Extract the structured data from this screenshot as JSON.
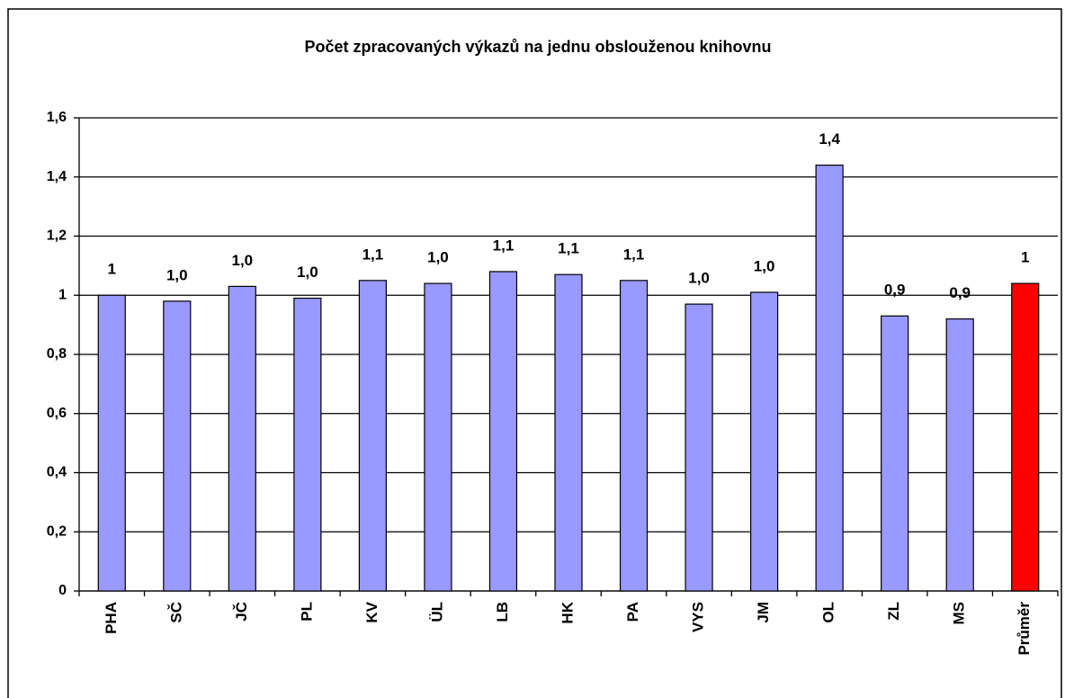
{
  "chart_data": {
    "type": "bar",
    "title": "Počet zpracovaných výkazů na jednu obslouženou knihovnu",
    "categories": [
      "PHA",
      "SČ",
      "JČ",
      "PL",
      "KV",
      "ÜL",
      "LB",
      "HK",
      "PA",
      "VYS",
      "JM",
      "OL",
      "ZL",
      "MS",
      "Průměr"
    ],
    "values": [
      1.0,
      0.98,
      1.03,
      0.99,
      1.05,
      1.04,
      1.08,
      1.07,
      1.05,
      0.97,
      1.01,
      1.44,
      0.93,
      0.92,
      1.04
    ],
    "value_labels": [
      "1",
      "1,0",
      "1,0",
      "1,0",
      "1,1",
      "1,0",
      "1,1",
      "1,1",
      "1,1",
      "1,0",
      "1,0",
      "1,4",
      "0,9",
      "0,9",
      "1"
    ],
    "colors": [
      "#9999ff",
      "#9999ff",
      "#9999ff",
      "#9999ff",
      "#9999ff",
      "#9999ff",
      "#9999ff",
      "#9999ff",
      "#9999ff",
      "#9999ff",
      "#9999ff",
      "#9999ff",
      "#9999ff",
      "#9999ff",
      "#ff0000"
    ],
    "value_label_colors": [
      "#000000",
      "#000000",
      "#000000",
      "#000000",
      "#000000",
      "#000000",
      "#000000",
      "#000000",
      "#000000",
      "#000000",
      "#000000",
      "#000000",
      "#000000",
      "#000000",
      "#ff0000"
    ],
    "ylim": [
      0,
      1.6
    ],
    "yticks": [
      0,
      {
        "value": 0.2,
        "label": "0,2"
      },
      {
        "value": 0.4,
        "label": "0,4"
      },
      {
        "value": 0.6,
        "label": "0,6"
      },
      {
        "value": 0.8,
        "label": "0,8"
      },
      1,
      {
        "value": 1.2,
        "label": "1,2"
      },
      {
        "value": 1.4,
        "label": "1,4"
      },
      {
        "value": 1.6,
        "label": "1,6"
      }
    ],
    "grid": true
  }
}
